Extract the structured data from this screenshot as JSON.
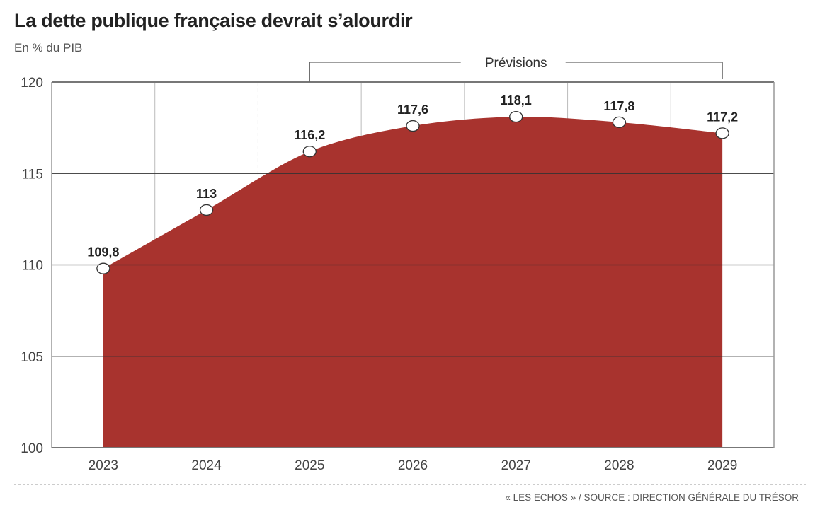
{
  "chart_data": {
    "type": "area",
    "title": "La dette publique française devrait s’alourdir",
    "subtitle": "En % du PIB",
    "categories": [
      "2023",
      "2024",
      "2025",
      "2026",
      "2027",
      "2028",
      "2029"
    ],
    "values": [
      109.8,
      113,
      116.2,
      117.6,
      118.1,
      117.8,
      117.2
    ],
    "data_labels": [
      "109,8",
      "113",
      "116,2",
      "117,6",
      "118,1",
      "117,8",
      "117,2"
    ],
    "y_ticks": [
      "100",
      "105",
      "110",
      "115",
      "120"
    ],
    "ylim": [
      100,
      120
    ],
    "grid": true,
    "annotation": {
      "label": "Prévisions",
      "from": "2025",
      "to": "2029"
    },
    "source": "« LES ECHOS » / SOURCE : DIRECTION GÉNÉRALE DU TRÉSOR",
    "colors": {
      "fill": "#a8332e",
      "marker": "#ffffff",
      "text": "#222222"
    }
  }
}
